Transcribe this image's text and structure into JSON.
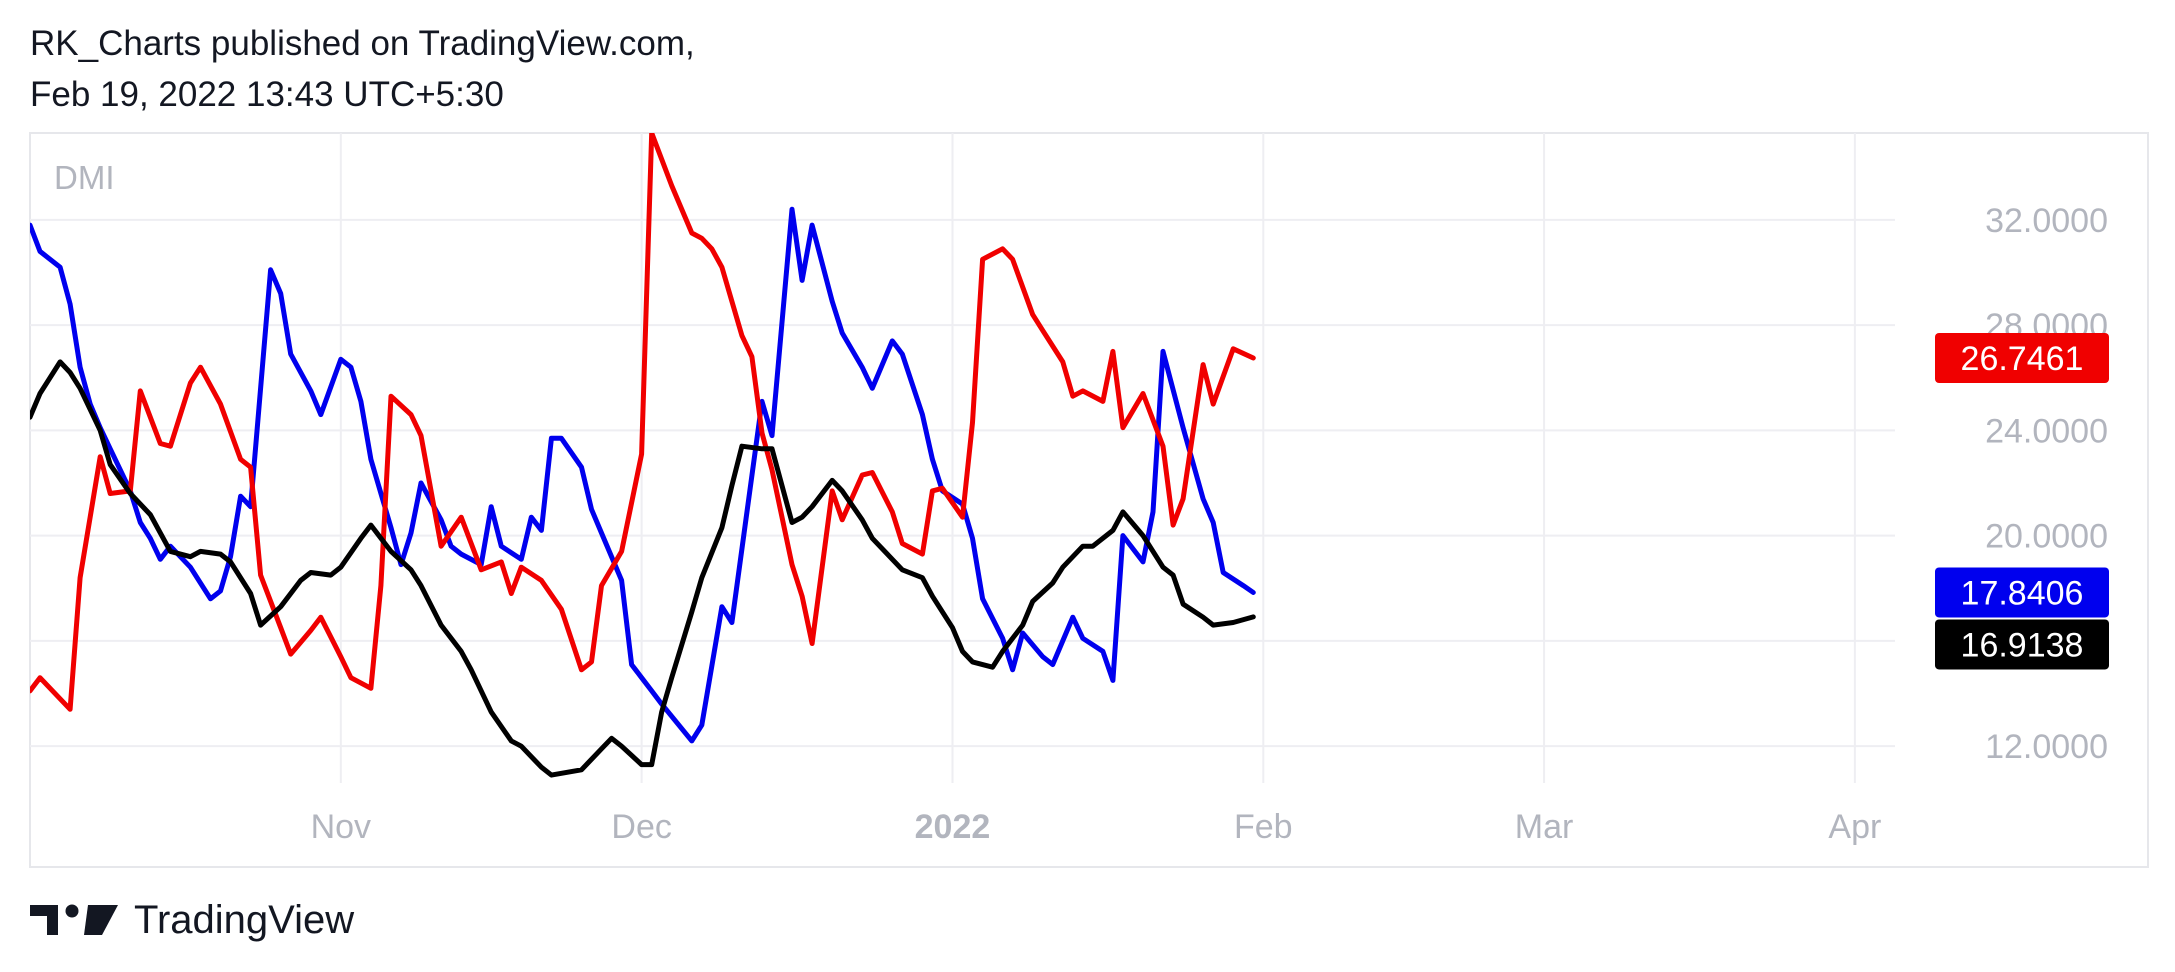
{
  "header": {
    "line1": "RK_Charts published on TradingView.com,",
    "line2": "Feb 19, 2022 13:43 UTC+5:30"
  },
  "footer": {
    "brand": "TradingView"
  },
  "colors": {
    "plus_di": "#f00000",
    "minus_di": "#0000ee",
    "adx": "#000000",
    "grid": "#eeeef2",
    "axis_text": "#b2b5be"
  },
  "chart_data": {
    "type": "line",
    "title": "",
    "indicator_label": "DMI",
    "x_domain": [
      "2021-10-01",
      "2022-04-05"
    ],
    "ylim": [
      10.6,
      35.3
    ],
    "y_ticks": [
      "12.0000",
      "16.0000",
      "20.0000",
      "24.0000",
      "28.0000",
      "32.0000"
    ],
    "y_tick_values": [
      12,
      16,
      20,
      24,
      28,
      32
    ],
    "x_ticks": [
      {
        "label": "Nov",
        "date": "2021-11-01",
        "bold": false
      },
      {
        "label": "Dec",
        "date": "2021-12-01",
        "bold": false
      },
      {
        "label": "2022",
        "date": "2022-01-01",
        "bold": true
      },
      {
        "label": "Feb",
        "date": "2022-02-01",
        "bold": false
      },
      {
        "label": "Mar",
        "date": "2022-03-01",
        "bold": false
      },
      {
        "label": "Apr",
        "date": "2022-04-01",
        "bold": false
      }
    ],
    "grid": true,
    "series": [
      {
        "key": "minus_di",
        "color": "#0000ee",
        "last_label": "17.8406",
        "points": [
          [
            "2021-10-01",
            31.8
          ],
          [
            "2021-10-02",
            30.8
          ],
          [
            "2021-10-04",
            30.2
          ],
          [
            "2021-10-05",
            28.8
          ],
          [
            "2021-10-06",
            26.4
          ],
          [
            "2021-10-07",
            25.0
          ],
          [
            "2021-10-08",
            24.1
          ],
          [
            "2021-10-09",
            23.3
          ],
          [
            "2021-10-11",
            21.7
          ],
          [
            "2021-10-12",
            20.5
          ],
          [
            "2021-10-13",
            19.9
          ],
          [
            "2021-10-14",
            19.1
          ],
          [
            "2021-10-15",
            19.6
          ],
          [
            "2021-10-17",
            18.8
          ],
          [
            "2021-10-19",
            17.6
          ],
          [
            "2021-10-20",
            17.9
          ],
          [
            "2021-10-21",
            19.2
          ],
          [
            "2021-10-22",
            21.5
          ],
          [
            "2021-10-23",
            21.1
          ],
          [
            "2021-10-25",
            30.1
          ],
          [
            "2021-10-26",
            29.2
          ],
          [
            "2021-10-27",
            26.9
          ],
          [
            "2021-10-29",
            25.5
          ],
          [
            "2021-10-30",
            24.6
          ],
          [
            "2021-11-01",
            26.7
          ],
          [
            "2021-11-02",
            26.4
          ],
          [
            "2021-11-03",
            25.1
          ],
          [
            "2021-11-04",
            22.9
          ],
          [
            "2021-11-06",
            20.3
          ],
          [
            "2021-11-07",
            18.9
          ],
          [
            "2021-11-08",
            20.1
          ],
          [
            "2021-11-09",
            22.0
          ],
          [
            "2021-11-11",
            20.6
          ],
          [
            "2021-11-12",
            19.6
          ],
          [
            "2021-11-13",
            19.3
          ],
          [
            "2021-11-15",
            18.9
          ],
          [
            "2021-11-16",
            21.1
          ],
          [
            "2021-11-17",
            19.6
          ],
          [
            "2021-11-19",
            19.1
          ],
          [
            "2021-11-20",
            20.7
          ],
          [
            "2021-11-21",
            20.2
          ],
          [
            "2021-11-22",
            23.7
          ],
          [
            "2021-11-23",
            23.7
          ],
          [
            "2021-11-25",
            22.6
          ],
          [
            "2021-11-26",
            21.0
          ],
          [
            "2021-11-27",
            20.1
          ],
          [
            "2021-11-29",
            18.3
          ],
          [
            "2021-11-30",
            15.1
          ],
          [
            "2021-12-01",
            14.6
          ],
          [
            "2021-12-02",
            14.1
          ],
          [
            "2021-12-03",
            13.6
          ],
          [
            "2021-12-06",
            12.2
          ],
          [
            "2021-12-07",
            12.8
          ],
          [
            "2021-12-09",
            17.3
          ],
          [
            "2021-12-10",
            16.7
          ],
          [
            "2021-12-13",
            25.1
          ],
          [
            "2021-12-14",
            23.8
          ],
          [
            "2021-12-16",
            32.4
          ],
          [
            "2021-12-17",
            29.7
          ],
          [
            "2021-12-18",
            31.8
          ],
          [
            "2021-12-20",
            28.9
          ],
          [
            "2021-12-21",
            27.7
          ],
          [
            "2021-12-23",
            26.4
          ],
          [
            "2021-12-24",
            25.6
          ],
          [
            "2021-12-26",
            27.4
          ],
          [
            "2021-12-27",
            26.9
          ],
          [
            "2021-12-29",
            24.6
          ],
          [
            "2021-12-30",
            22.9
          ],
          [
            "2021-12-31",
            21.7
          ],
          [
            "2022-01-02",
            21.2
          ],
          [
            "2022-01-03",
            19.9
          ],
          [
            "2022-01-04",
            17.6
          ],
          [
            "2022-01-06",
            16.1
          ],
          [
            "2022-01-07",
            14.9
          ],
          [
            "2022-01-08",
            16.3
          ],
          [
            "2022-01-10",
            15.4
          ],
          [
            "2022-01-11",
            15.1
          ],
          [
            "2022-01-13",
            16.9
          ],
          [
            "2022-01-14",
            16.1
          ],
          [
            "2022-01-16",
            15.6
          ],
          [
            "2022-01-17",
            14.5
          ],
          [
            "2022-01-18",
            20.0
          ],
          [
            "2022-01-20",
            19.0
          ],
          [
            "2022-01-21",
            20.9
          ],
          [
            "2022-01-22",
            27.0
          ],
          [
            "2022-01-24",
            24.1
          ],
          [
            "2022-01-26",
            21.4
          ],
          [
            "2022-01-27",
            20.5
          ],
          [
            "2022-01-28",
            18.6
          ],
          [
            "2022-01-30",
            18.1
          ],
          [
            "2022-01-31",
            17.84
          ]
        ]
      },
      {
        "key": "plus_di",
        "color": "#f00000",
        "last_label": "26.7461",
        "points": [
          [
            "2021-10-01",
            14.1
          ],
          [
            "2021-10-02",
            14.6
          ],
          [
            "2021-10-04",
            13.8
          ],
          [
            "2021-10-05",
            13.4
          ],
          [
            "2021-10-06",
            18.4
          ],
          [
            "2021-10-08",
            23.0
          ],
          [
            "2021-10-09",
            21.6
          ],
          [
            "2021-10-11",
            21.7
          ],
          [
            "2021-10-12",
            25.5
          ],
          [
            "2021-10-14",
            23.5
          ],
          [
            "2021-10-15",
            23.4
          ],
          [
            "2021-10-17",
            25.8
          ],
          [
            "2021-10-18",
            26.4
          ],
          [
            "2021-10-20",
            25.0
          ],
          [
            "2021-10-22",
            22.9
          ],
          [
            "2021-10-23",
            22.6
          ],
          [
            "2021-10-24",
            18.5
          ],
          [
            "2021-10-26",
            16.5
          ],
          [
            "2021-10-27",
            15.5
          ],
          [
            "2021-10-29",
            16.4
          ],
          [
            "2021-10-30",
            16.9
          ],
          [
            "2021-11-01",
            15.4
          ],
          [
            "2021-11-02",
            14.6
          ],
          [
            "2021-11-04",
            14.2
          ],
          [
            "2021-11-05",
            18.1
          ],
          [
            "2021-11-06",
            25.3
          ],
          [
            "2021-11-08",
            24.6
          ],
          [
            "2021-11-09",
            23.8
          ],
          [
            "2021-11-11",
            19.6
          ],
          [
            "2021-11-13",
            20.7
          ],
          [
            "2021-11-14",
            19.7
          ],
          [
            "2021-11-15",
            18.7
          ],
          [
            "2021-11-17",
            19.0
          ],
          [
            "2021-11-18",
            17.8
          ],
          [
            "2021-11-19",
            18.8
          ],
          [
            "2021-11-21",
            18.3
          ],
          [
            "2021-11-23",
            17.2
          ],
          [
            "2021-11-25",
            14.9
          ],
          [
            "2021-11-26",
            15.2
          ],
          [
            "2021-11-27",
            18.1
          ],
          [
            "2021-11-29",
            19.4
          ],
          [
            "2021-12-01",
            23.1
          ],
          [
            "2021-12-02",
            35.3
          ],
          [
            "2021-12-04",
            33.3
          ],
          [
            "2021-12-06",
            31.5
          ],
          [
            "2021-12-07",
            31.3
          ],
          [
            "2021-12-08",
            30.9
          ],
          [
            "2021-12-09",
            30.2
          ],
          [
            "2021-12-11",
            27.6
          ],
          [
            "2021-12-12",
            26.8
          ],
          [
            "2021-12-13",
            23.9
          ],
          [
            "2021-12-14",
            22.5
          ],
          [
            "2021-12-16",
            18.9
          ],
          [
            "2021-12-17",
            17.7
          ],
          [
            "2021-12-18",
            15.9
          ],
          [
            "2021-12-20",
            21.7
          ],
          [
            "2021-12-21",
            20.6
          ],
          [
            "2021-12-23",
            22.3
          ],
          [
            "2021-12-24",
            22.4
          ],
          [
            "2021-12-26",
            20.9
          ],
          [
            "2021-12-27",
            19.7
          ],
          [
            "2021-12-29",
            19.3
          ],
          [
            "2021-12-30",
            21.7
          ],
          [
            "2021-12-31",
            21.8
          ],
          [
            "2022-01-02",
            20.7
          ],
          [
            "2022-01-03",
            24.3
          ],
          [
            "2022-01-04",
            30.5
          ],
          [
            "2022-01-06",
            30.9
          ],
          [
            "2022-01-07",
            30.5
          ],
          [
            "2022-01-09",
            28.4
          ],
          [
            "2022-01-10",
            27.8
          ],
          [
            "2022-01-12",
            26.6
          ],
          [
            "2022-01-13",
            25.3
          ],
          [
            "2022-01-14",
            25.5
          ],
          [
            "2022-01-16",
            25.1
          ],
          [
            "2022-01-17",
            27.0
          ],
          [
            "2022-01-18",
            24.1
          ],
          [
            "2022-01-20",
            25.4
          ],
          [
            "2022-01-22",
            23.4
          ],
          [
            "2022-01-23",
            20.4
          ],
          [
            "2022-01-24",
            21.4
          ],
          [
            "2022-01-26",
            26.5
          ],
          [
            "2022-01-27",
            25.0
          ],
          [
            "2022-01-29",
            27.1
          ],
          [
            "2022-01-31",
            26.75
          ]
        ]
      },
      {
        "key": "adx",
        "color": "#000000",
        "last_label": "16.9138",
        "points": [
          [
            "2021-10-01",
            24.5
          ],
          [
            "2021-10-02",
            25.4
          ],
          [
            "2021-10-04",
            26.6
          ],
          [
            "2021-10-05",
            26.2
          ],
          [
            "2021-10-06",
            25.6
          ],
          [
            "2021-10-08",
            24.0
          ],
          [
            "2021-10-09",
            22.7
          ],
          [
            "2021-10-11",
            21.6
          ],
          [
            "2021-10-13",
            20.8
          ],
          [
            "2021-10-15",
            19.4
          ],
          [
            "2021-10-17",
            19.2
          ],
          [
            "2021-10-18",
            19.4
          ],
          [
            "2021-10-20",
            19.3
          ],
          [
            "2021-10-21",
            19.0
          ],
          [
            "2021-10-23",
            17.8
          ],
          [
            "2021-10-24",
            16.6
          ],
          [
            "2021-10-26",
            17.3
          ],
          [
            "2021-10-28",
            18.3
          ],
          [
            "2021-10-29",
            18.6
          ],
          [
            "2021-10-31",
            18.5
          ],
          [
            "2021-11-01",
            18.8
          ],
          [
            "2021-11-03",
            19.9
          ],
          [
            "2021-11-04",
            20.4
          ],
          [
            "2021-11-06",
            19.4
          ],
          [
            "2021-11-08",
            18.7
          ],
          [
            "2021-11-09",
            18.1
          ],
          [
            "2021-11-11",
            16.6
          ],
          [
            "2021-11-13",
            15.6
          ],
          [
            "2021-11-14",
            14.9
          ],
          [
            "2021-11-16",
            13.3
          ],
          [
            "2021-11-18",
            12.2
          ],
          [
            "2021-11-19",
            12.0
          ],
          [
            "2021-11-21",
            11.2
          ],
          [
            "2021-11-22",
            10.9
          ],
          [
            "2021-11-25",
            11.1
          ],
          [
            "2021-11-27",
            11.9
          ],
          [
            "2021-11-28",
            12.3
          ],
          [
            "2021-11-29",
            12.0
          ],
          [
            "2021-12-01",
            11.3
          ],
          [
            "2021-12-02",
            11.3
          ],
          [
            "2021-12-03",
            13.3
          ],
          [
            "2021-12-04",
            14.6
          ],
          [
            "2021-12-06",
            17.1
          ],
          [
            "2021-12-07",
            18.4
          ],
          [
            "2021-12-09",
            20.3
          ],
          [
            "2021-12-10",
            21.9
          ],
          [
            "2021-12-11",
            23.4
          ],
          [
            "2021-12-13",
            23.3
          ],
          [
            "2021-12-14",
            23.3
          ],
          [
            "2021-12-16",
            20.5
          ],
          [
            "2021-12-17",
            20.7
          ],
          [
            "2021-12-18",
            21.1
          ],
          [
            "2021-12-20",
            22.1
          ],
          [
            "2021-12-21",
            21.7
          ],
          [
            "2021-12-23",
            20.6
          ],
          [
            "2021-12-24",
            19.9
          ],
          [
            "2021-12-26",
            19.1
          ],
          [
            "2021-12-27",
            18.7
          ],
          [
            "2021-12-29",
            18.4
          ],
          [
            "2021-12-30",
            17.7
          ],
          [
            "2022-01-01",
            16.5
          ],
          [
            "2022-01-02",
            15.6
          ],
          [
            "2022-01-03",
            15.2
          ],
          [
            "2022-01-05",
            15.0
          ],
          [
            "2022-01-06",
            15.6
          ],
          [
            "2022-01-08",
            16.6
          ],
          [
            "2022-01-09",
            17.5
          ],
          [
            "2022-01-11",
            18.2
          ],
          [
            "2022-01-12",
            18.8
          ],
          [
            "2022-01-14",
            19.6
          ],
          [
            "2022-01-15",
            19.6
          ],
          [
            "2022-01-17",
            20.2
          ],
          [
            "2022-01-18",
            20.9
          ],
          [
            "2022-01-20",
            20.0
          ],
          [
            "2022-01-22",
            18.8
          ],
          [
            "2022-01-23",
            18.5
          ],
          [
            "2022-01-24",
            17.4
          ],
          [
            "2022-01-26",
            16.9
          ],
          [
            "2022-01-27",
            16.6
          ],
          [
            "2022-01-29",
            16.7
          ],
          [
            "2022-01-31",
            16.91
          ]
        ]
      }
    ]
  }
}
